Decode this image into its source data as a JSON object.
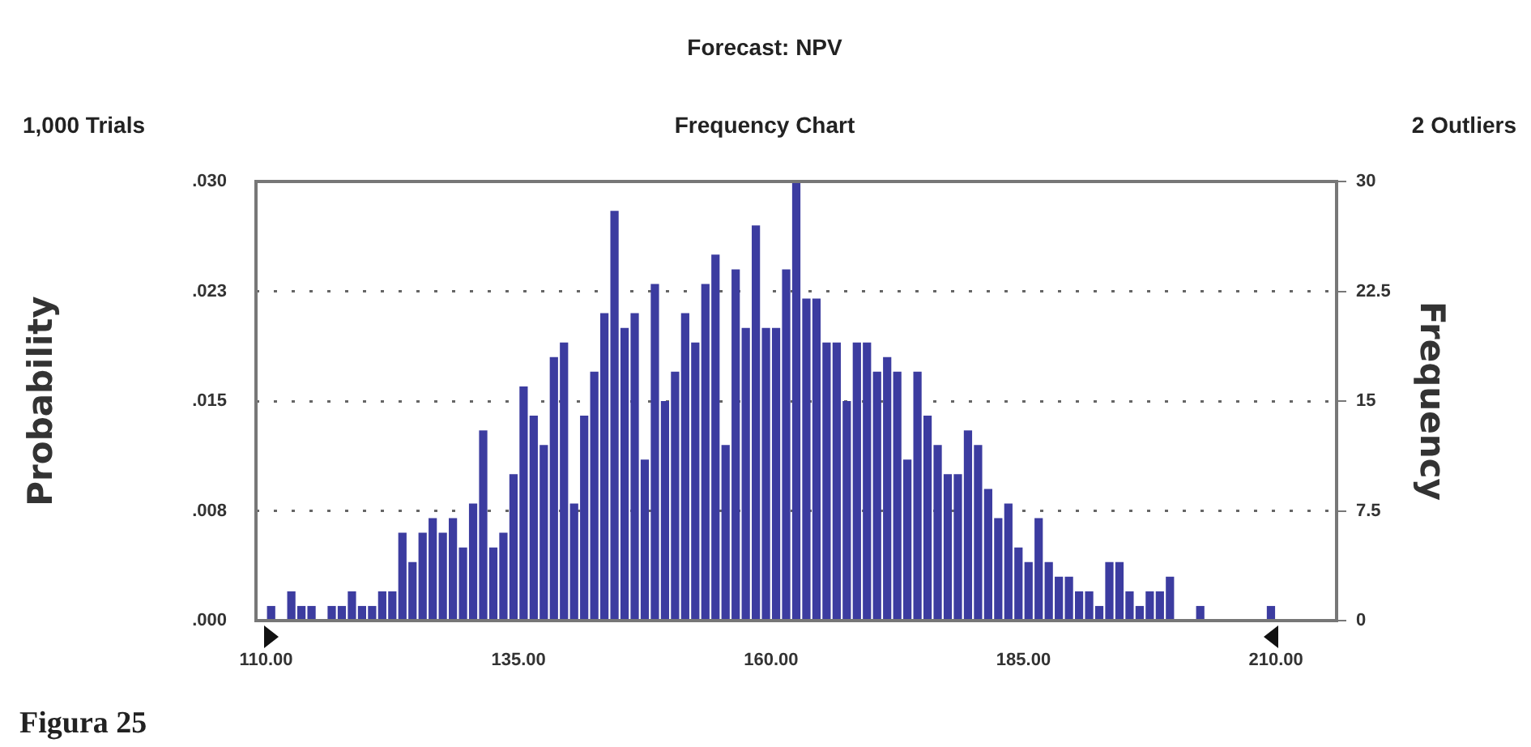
{
  "chart_data": {
    "type": "histogram",
    "title": "Forecast: NPV",
    "subtitle": "Frequency Chart",
    "ylabel": "Probability",
    "y2label": "Frequency",
    "annotations": [
      "1,000 Trials",
      "2 Outliers",
      "Figura 25"
    ],
    "bins": [
      110,
      111,
      112,
      113,
      114,
      115,
      116,
      117,
      118,
      119,
      120,
      121,
      122,
      123,
      124,
      125,
      126,
      127,
      128,
      129,
      130,
      131,
      132,
      133,
      134,
      135,
      136,
      137,
      138,
      139,
      140,
      141,
      142,
      143,
      144,
      145,
      146,
      147,
      148,
      149,
      150,
      151,
      152,
      153,
      154,
      155,
      156,
      157,
      158,
      159,
      160,
      161,
      162,
      163,
      164,
      165,
      166,
      167,
      168,
      169,
      170,
      171,
      172,
      173,
      174,
      175,
      176,
      177,
      178,
      179,
      180,
      181,
      182,
      183,
      184,
      185,
      186,
      187,
      188,
      189,
      190,
      191,
      192,
      193,
      194,
      195,
      196,
      197,
      198,
      199,
      200,
      201,
      202,
      203,
      204,
      205,
      206,
      207,
      208,
      209,
      210
    ],
    "series": [
      {
        "color": "#3c3ca0",
        "axis": "y2",
        "values": [
          1,
          0,
          2,
          1,
          1,
          0,
          1,
          1,
          2,
          1,
          1,
          2,
          2,
          6,
          4,
          6,
          7,
          6,
          7,
          5,
          8,
          13,
          5,
          6,
          10,
          16,
          14,
          12,
          18,
          19,
          8,
          14,
          17,
          21,
          28,
          20,
          21,
          11,
          23,
          15,
          17,
          21,
          19,
          23,
          25,
          12,
          24,
          20,
          27,
          20,
          20,
          24,
          30,
          22,
          22,
          19,
          19,
          15,
          19,
          19,
          17,
          18,
          17,
          11,
          17,
          14,
          12,
          10,
          10,
          13,
          12,
          9,
          7,
          8,
          5,
          4,
          7,
          4,
          3,
          3,
          2,
          2,
          1,
          4,
          4,
          2,
          1,
          2,
          2,
          3,
          0,
          0,
          1,
          0,
          0,
          0,
          0,
          0,
          0,
          1
        ]
      }
    ],
    "xlim": [
      109,
      216
    ],
    "xticks": [
      {
        "value": 110,
        "label": "110.00"
      },
      {
        "value": 135,
        "label": "135.00"
      },
      {
        "value": 160,
        "label": "160.00"
      },
      {
        "value": 185,
        "label": "185.00"
      },
      {
        "value": 210,
        "label": "210.00"
      }
    ],
    "ylim": [
      0,
      0.03
    ],
    "yticks": [
      {
        "value": 0,
        "label": ".000"
      },
      {
        "value": 0.0075,
        "label": ".008"
      },
      {
        "value": 0.015,
        "label": ".015"
      },
      {
        "value": 0.0225,
        "label": ".023"
      },
      {
        "value": 0.03,
        "label": ".030"
      }
    ],
    "y2lim": [
      0,
      30
    ],
    "y2ticks": [
      0,
      7.5,
      15,
      22.5,
      30
    ],
    "grid": "y"
  }
}
